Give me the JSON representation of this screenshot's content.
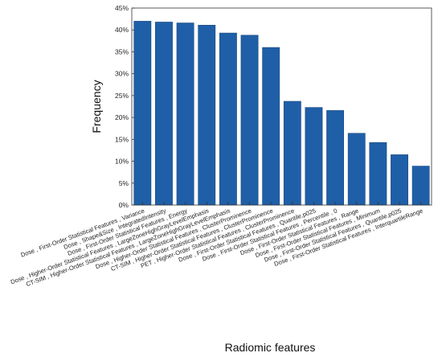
{
  "chart_data": {
    "type": "bar",
    "title": "",
    "xlabel": "Radiomic features",
    "ylabel": "Frequency",
    "ylim": [
      0,
      45
    ],
    "y_tick_format": "percent",
    "y_ticks": [
      0,
      5,
      10,
      15,
      20,
      25,
      30,
      35,
      40,
      45
    ],
    "grid": false,
    "bar_color": "#1f5fa8",
    "categories": [
      "Dose , First-Order Statistical Features , Variance",
      "Dose , Shape&Size , IntegratedIntensity",
      "Dose , First-Order Statistical Features , Energy",
      "Dose , Higher-Order Statistical Features , LargeZoneHighGrayLevelEmphasis",
      "CT-SIM , Higher-Order Statistical Features , LargeZoneHighGrayLevelEmphasis",
      "Dose , Higher-Order Statistical Features , ClusterProminence",
      "CT-SIM , Higher-Order Statistical Features , ClusterProminence",
      "PET , Higher-Order Statistical Features , ClusterProminence",
      "Dose , First-Order Statistical Features , Quantile,p025",
      "Dose , First-Order Statistical Features , Percentile , 0",
      "Dose , First-Order Statistical Features , Range",
      "Dose , First-Order Statistical Features , Minimum",
      "Dose , First-Order Statistical Features , Quantile,p025",
      "Dose , First-Order Statistical Features , InterquartileRange"
    ],
    "values": [
      42.0,
      41.8,
      41.6,
      41.1,
      39.3,
      38.8,
      36.0,
      23.7,
      22.3,
      21.6,
      16.4,
      14.3,
      11.5,
      8.9
    ]
  }
}
